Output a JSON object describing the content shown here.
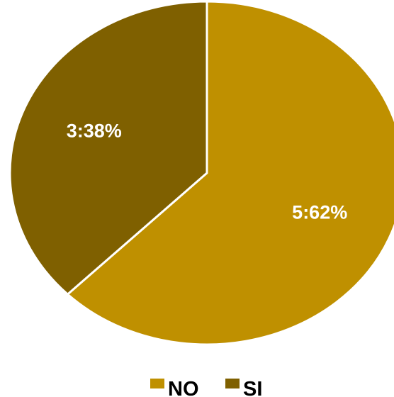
{
  "chart_data": {
    "type": "pie",
    "slices": [
      {
        "name": "NO",
        "value": 5,
        "percent": 62,
        "label": "5:62%",
        "color": "#BF9000"
      },
      {
        "name": "SI",
        "value": 3,
        "percent": 38,
        "label": "3:38%",
        "color": "#7F6000"
      }
    ],
    "legend": {
      "position": "bottom",
      "entries": [
        "NO",
        "SI"
      ]
    }
  }
}
